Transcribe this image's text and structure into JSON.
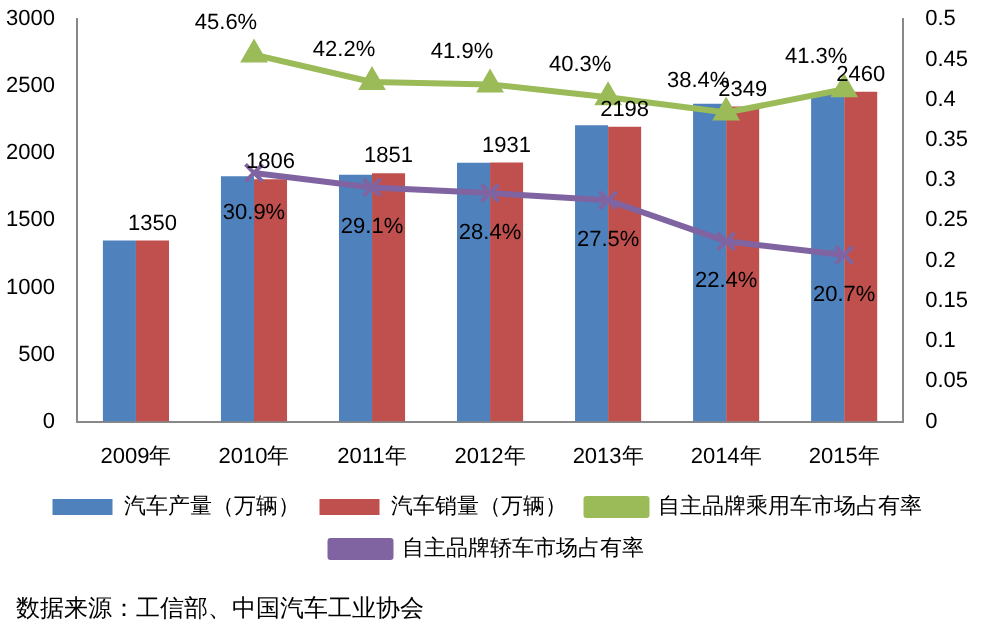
{
  "chart_data": {
    "type": "bar",
    "categories": [
      "2009年",
      "2010年",
      "2011年",
      "2012年",
      "2013年",
      "2014年",
      "2015年"
    ],
    "series": [
      {
        "name": "汽车产量（万辆）",
        "color": "#4f81bd",
        "values": [
          1350,
          1830,
          1840,
          1930,
          2210,
          2370,
          2450
        ]
      },
      {
        "name": "汽车销量（万辆）",
        "color": "#c0504d",
        "values": [
          1350,
          1806,
          1851,
          1931,
          2198,
          2349,
          2460
        ],
        "value_labels": [
          "1350",
          "1806",
          "1851",
          "1931",
          "2198",
          "2349",
          "2460"
        ]
      },
      {
        "name": "自主品牌乘用车市场占有率",
        "type": "line",
        "axis": "y2",
        "color": "#9bbb59",
        "marker": "triangle",
        "values": [
          null,
          0.456,
          0.422,
          0.419,
          0.403,
          0.384,
          0.413
        ],
        "value_labels": [
          null,
          "45.6%",
          "42.2%",
          "41.9%",
          "40.3%",
          "38.4%",
          "41.3%"
        ]
      },
      {
        "name": "自主品牌轿车市场占有率",
        "type": "line",
        "axis": "y2",
        "color": "#8064a2",
        "marker": "cross",
        "values": [
          null,
          0.309,
          0.291,
          0.284,
          0.275,
          0.224,
          0.207
        ],
        "value_labels": [
          null,
          "30.9%",
          "29.1%",
          "28.4%",
          "27.5%",
          "22.4%",
          "20.7%"
        ]
      }
    ],
    "ylim": [
      0,
      3000
    ],
    "yticks": [
      0,
      500,
      1000,
      1500,
      2000,
      2500,
      3000
    ],
    "y2lim": [
      0,
      0.5
    ],
    "y2ticks": [
      0,
      0.05,
      0.1,
      0.15,
      0.2,
      0.25,
      0.3,
      0.35,
      0.4,
      0.45,
      0.5
    ],
    "grid": false,
    "legend": "bottom",
    "annotations": [
      "数据来源：工信部、中国汽车工业协会"
    ]
  }
}
